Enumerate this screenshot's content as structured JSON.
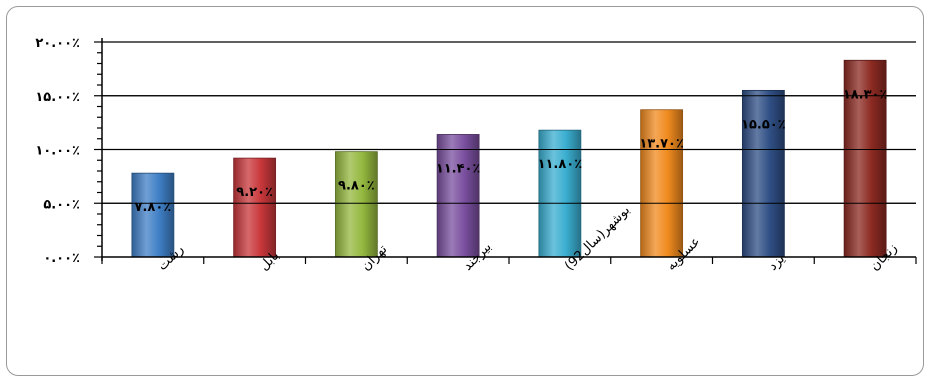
{
  "chart_data": {
    "type": "bar",
    "categories": [
      "رشت",
      "بابل",
      "تهران",
      "بیرجند",
      "بوشهر(سال92)",
      "عسلویه",
      "یزد",
      "زنجان"
    ],
    "values": [
      7.8,
      9.2,
      9.8,
      11.4,
      11.8,
      13.7,
      15.5,
      18.3
    ],
    "data_labels": [
      "۷.۸۰٪",
      "۹.۲۰٪",
      "۹.۸۰٪",
      "۱۱.۴۰٪",
      "۱۱.۸۰٪",
      "۱۳.۷۰٪",
      "۱۵.۵۰٪",
      "۱۸.۳۰٪"
    ],
    "bar_colors": [
      "#3f7fc6",
      "#c8373a",
      "#94b83f",
      "#7a4f9f",
      "#3aaed0",
      "#f08a1e",
      "#2f4f85",
      "#8c2a22"
    ],
    "ylim": [
      0,
      20
    ],
    "y_ticks": [
      0,
      5,
      10,
      15,
      20
    ],
    "y_tick_labels": [
      "۰.۰۰٪",
      "۵.۰۰٪",
      "۱۰.۰۰٪",
      "۱۵.۰۰٪",
      "۲۰.۰۰٪"
    ],
    "grid": true,
    "title": "",
    "xlabel": "",
    "ylabel": ""
  }
}
